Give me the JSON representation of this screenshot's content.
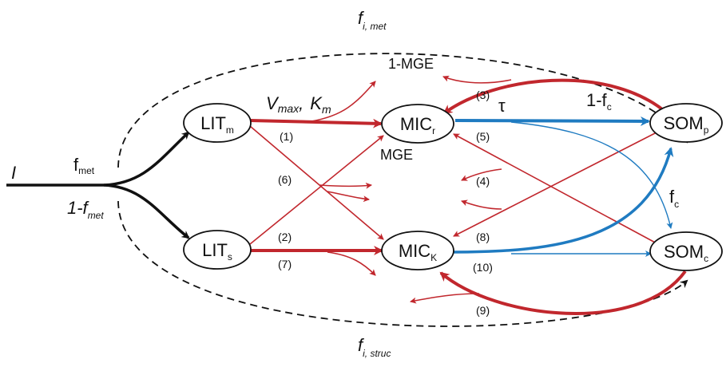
{
  "nodes": {
    "lit_m": {
      "main": "LIT",
      "sub": "m"
    },
    "lit_s": {
      "main": "LIT",
      "sub": "s"
    },
    "mic_r": {
      "main": "MIC",
      "sub": "r"
    },
    "mic_k": {
      "main": "MIC",
      "sub": "K"
    },
    "som_p": {
      "main": "SOM",
      "sub": "p"
    },
    "som_c": {
      "main": "SOM",
      "sub": "c"
    }
  },
  "labels": {
    "input": "I",
    "f_met": {
      "main": "f",
      "sub": "met"
    },
    "one_minus_f_met": {
      "main": "1-f",
      "sub": "met"
    },
    "f_i_met": {
      "main": "f",
      "sub": "i, met"
    },
    "f_i_struc": {
      "main": "f",
      "sub": "i, struc"
    },
    "vmax_km": {
      "v": "V",
      "v_sub": "max",
      "sep": ",",
      "k": "K",
      "k_sub": "m"
    },
    "one_minus_mge": "1-MGE",
    "mge": "MGE",
    "tau": "τ",
    "one_minus_fc": {
      "main": "1-f",
      "sub": "c"
    },
    "fc": {
      "main": "f",
      "sub": "c"
    }
  },
  "flows": [
    "(1)",
    "(2)",
    "(3)",
    "(4)",
    "(5)",
    "(6)",
    "(7)",
    "(8)",
    "(9)",
    "(10)"
  ],
  "colors": {
    "red": "#c1272d",
    "blue": "#1f7bc1",
    "black": "#111111"
  }
}
